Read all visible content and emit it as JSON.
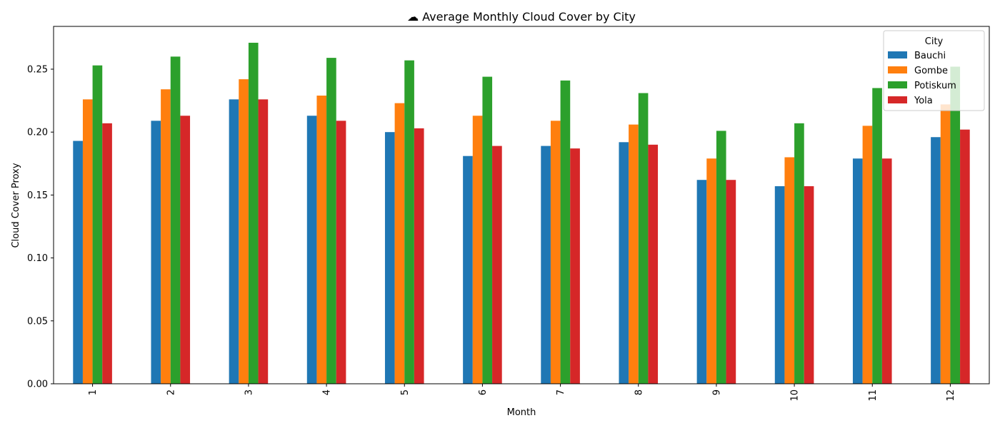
{
  "chart_data": {
    "type": "bar",
    "title": "☁ Average Monthly Cloud Cover by City",
    "xlabel": "Month",
    "ylabel": "Cloud Cover Proxy",
    "categories": [
      "1",
      "2",
      "3",
      "4",
      "5",
      "6",
      "7",
      "8",
      "9",
      "10",
      "11",
      "12"
    ],
    "ylim": [
      0,
      0.284
    ],
    "yticks": [
      "0.00",
      "0.05",
      "0.10",
      "0.15",
      "0.20",
      "0.25"
    ],
    "legend_title": "City",
    "legend_position": "top-right",
    "grid": false,
    "series": [
      {
        "name": "Bauchi",
        "color": "#1f77b4",
        "values": [
          0.193,
          0.209,
          0.226,
          0.213,
          0.2,
          0.181,
          0.189,
          0.192,
          0.162,
          0.157,
          0.179,
          0.196
        ]
      },
      {
        "name": "Gombe",
        "color": "#ff7f0e",
        "values": [
          0.226,
          0.234,
          0.242,
          0.229,
          0.223,
          0.213,
          0.209,
          0.206,
          0.179,
          0.18,
          0.205,
          0.222
        ]
      },
      {
        "name": "Potiskum",
        "color": "#2ca02c",
        "values": [
          0.253,
          0.26,
          0.271,
          0.259,
          0.257,
          0.244,
          0.241,
          0.231,
          0.201,
          0.207,
          0.235,
          0.252
        ]
      },
      {
        "name": "Yola",
        "color": "#d62728",
        "values": [
          0.207,
          0.213,
          0.226,
          0.209,
          0.203,
          0.189,
          0.187,
          0.19,
          0.162,
          0.157,
          0.179,
          0.202
        ]
      }
    ]
  }
}
